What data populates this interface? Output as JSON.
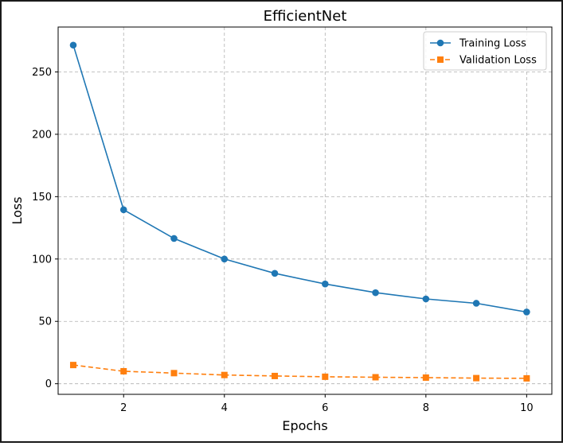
{
  "chart_data": {
    "type": "line",
    "title": "EfficientNet",
    "xlabel": "Epochs",
    "ylabel": "Loss",
    "x": [
      1,
      2,
      3,
      4,
      5,
      6,
      7,
      8,
      9,
      10
    ],
    "xticks": [
      2,
      4,
      6,
      8,
      10
    ],
    "yticks": [
      0,
      50,
      100,
      150,
      200,
      250
    ],
    "xlim": [
      0.7,
      10.5
    ],
    "ylim": [
      -8.5,
      286
    ],
    "grid": true,
    "legend_position": "top-right",
    "series": [
      {
        "name": "Training Loss",
        "values": [
          271.5,
          139.5,
          116.5,
          100.0,
          88.5,
          80.0,
          73.0,
          68.0,
          64.5,
          57.5
        ],
        "color": "#1f77b4",
        "line_style": "solid",
        "marker": "circle"
      },
      {
        "name": "Validation Loss",
        "values": [
          15.0,
          10.0,
          8.5,
          7.0,
          6.2,
          5.6,
          5.2,
          4.9,
          4.5,
          4.3
        ],
        "color": "#ff7f0e",
        "line_style": "dashed",
        "marker": "square"
      }
    ]
  }
}
